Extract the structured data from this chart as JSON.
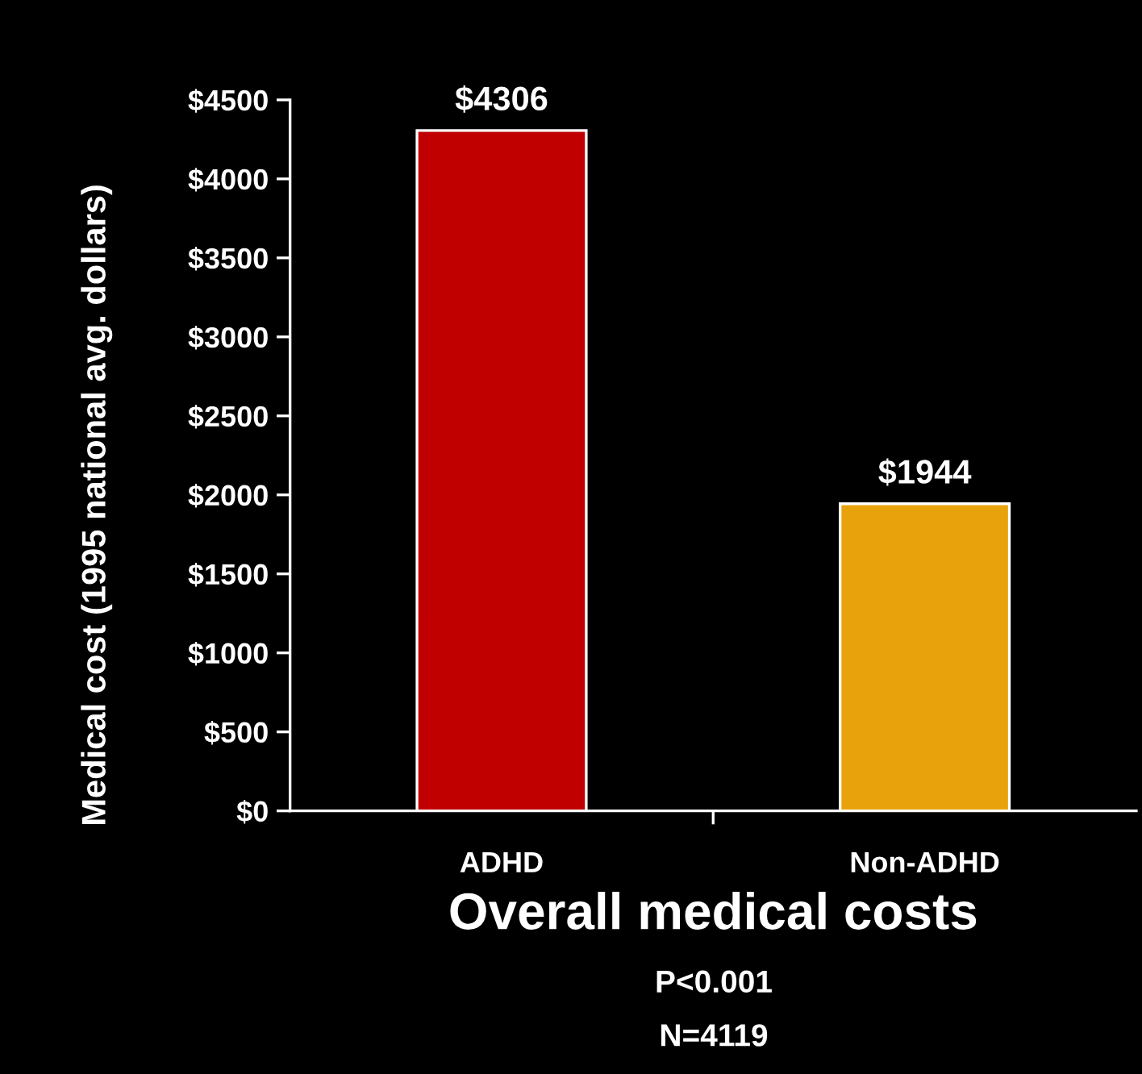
{
  "chart_data": {
    "type": "bar",
    "xlabel": "Overall medical costs",
    "ylabel": "Medical cost (1995 national avg. dollars)",
    "categories": [
      "ADHD",
      "Non-ADHD"
    ],
    "values": [
      4306,
      1944
    ],
    "colors": [
      "#c00000",
      "#e8a30c"
    ],
    "value_labels": [
      "$4306",
      "$1944"
    ],
    "ylim": [
      0,
      4500
    ],
    "yticks": [
      {
        "value": 0,
        "label": "$0"
      },
      {
        "value": 500,
        "label": "$500"
      },
      {
        "value": 1000,
        "label": "$1000"
      },
      {
        "value": 1500,
        "label": "$1500"
      },
      {
        "value": 2000,
        "label": "$2000"
      },
      {
        "value": 2500,
        "label": "$2500"
      },
      {
        "value": 3000,
        "label": "$3000"
      },
      {
        "value": 3500,
        "label": "$3500"
      },
      {
        "value": 4000,
        "label": "$4000"
      },
      {
        "value": 4500,
        "label": "$4500"
      }
    ],
    "grid": false,
    "annotations": [
      "P<0.001",
      "N=4119"
    ]
  }
}
